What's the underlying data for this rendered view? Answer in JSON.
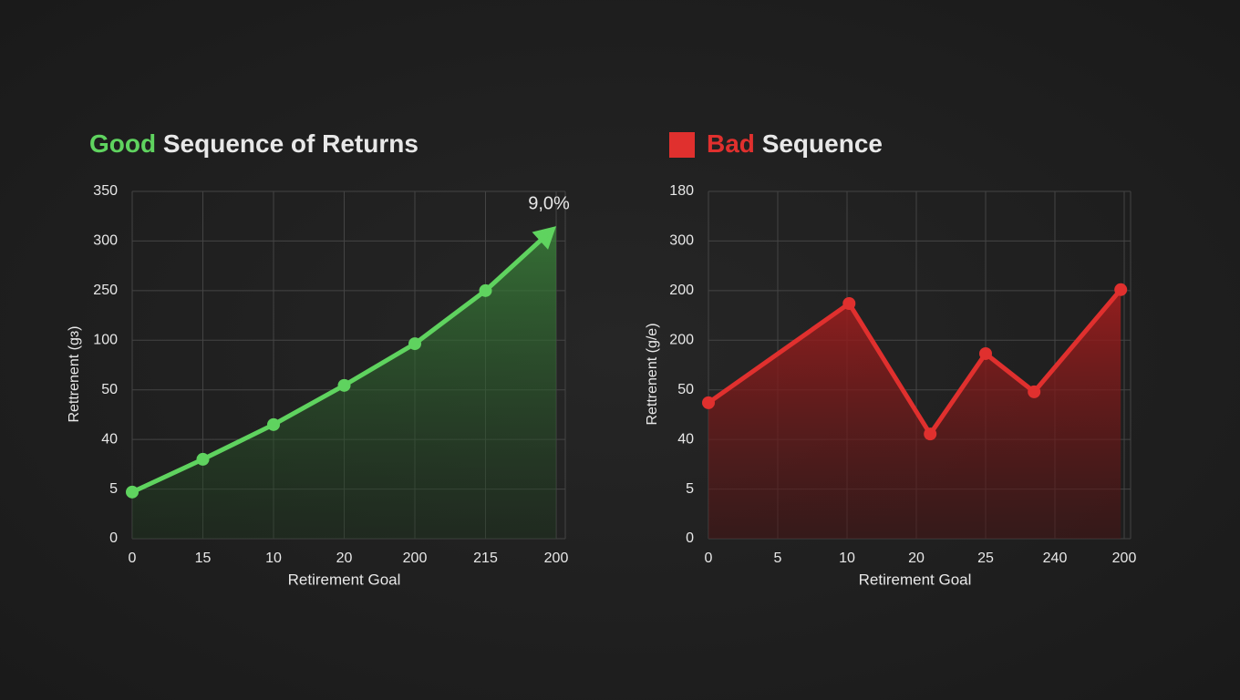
{
  "chart_data": [
    {
      "type": "line",
      "title_highlight": "Good",
      "title": "Sequence of Returns",
      "y_label": "Rettrenent (gɜ)",
      "x_label": "Retirement Goal",
      "ylabels": [
        "0",
        "5",
        "40",
        "50",
        "100",
        "250",
        "300",
        "350"
      ],
      "xlabels": [
        "0",
        "15",
        "10",
        "20",
        "200",
        "215",
        "200"
      ],
      "series": [
        {
          "name": "Good",
          "color": "#5fd35f",
          "x": [
            0,
            1,
            2,
            3,
            4,
            5,
            6
          ],
          "values": [
            0.94,
            1.6,
            2.3,
            3.09,
            3.93,
            5.0,
            6.3
          ]
        }
      ],
      "annotation": "9,0%",
      "arrow": true,
      "grid": true
    },
    {
      "type": "line",
      "title_highlight": "Bad",
      "title": "Sequence",
      "y_label": "Rettrenent (g/e)",
      "x_label": "Retirement Goal",
      "ylabels": [
        "0",
        "5",
        "40",
        "50",
        "200",
        "200",
        "300",
        "180"
      ],
      "xlabels": [
        "0",
        "5",
        "10",
        "20",
        "25",
        "240",
        "200"
      ],
      "series": [
        {
          "name": "Bad",
          "color": "#e0302e",
          "x": [
            0,
            2.03,
            3.2,
            4,
            4.7,
            5.95
          ],
          "values": [
            2.74,
            4.74,
            2.11,
            3.73,
            2.96,
            5.02
          ]
        }
      ],
      "arrow": false,
      "grid": true
    }
  ]
}
